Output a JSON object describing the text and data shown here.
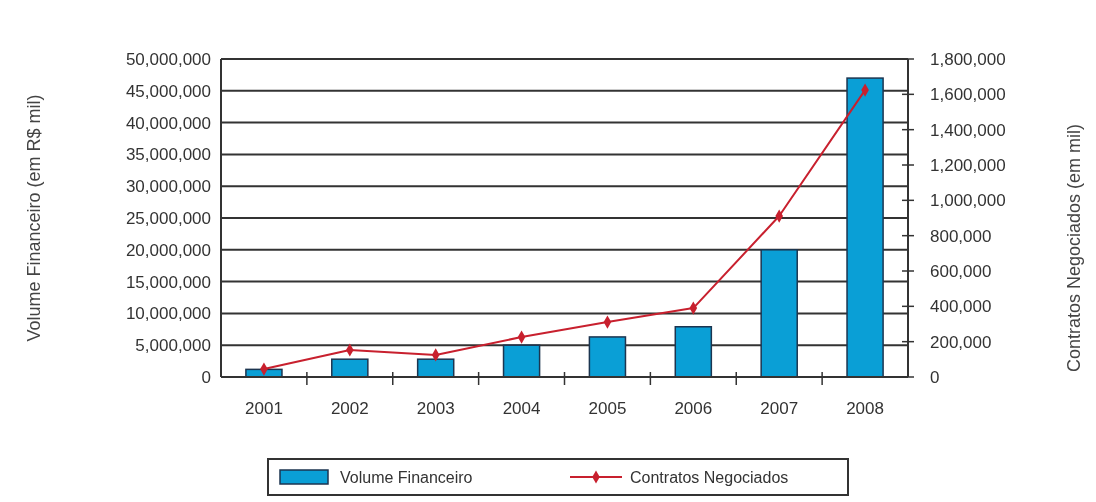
{
  "chart_data": {
    "type": "bar",
    "categories": [
      "2001",
      "2002",
      "2003",
      "2004",
      "2005",
      "2006",
      "2007",
      "2008"
    ],
    "ylabel": "Volume Financeiro (em R$ mil)",
    "y2label": "Contratos Negociados (em mil)",
    "series": [
      {
        "name": "Volume Financeiro",
        "color": "#0a9fd6",
        "values": [
          1200000,
          2800000,
          2800000,
          5000000,
          6300000,
          7900000,
          20000000,
          47000000
        ]
      },
      {
        "name": "Contratos Negociados",
        "type": "line",
        "axis": "y2",
        "color": "#c8202e",
        "marker": "diamond",
        "values": [
          45000,
          153000,
          125000,
          226000,
          311000,
          390000,
          911000,
          1624000
        ]
      }
    ],
    "ylim": [
      0,
      50000000
    ],
    "yticks": [
      {
        "value": 0,
        "label": "0"
      },
      {
        "value": 5000000,
        "label": "5,000,000"
      },
      {
        "value": 10000000,
        "label": "10,000,000"
      },
      {
        "value": 15000000,
        "label": "15,000,000"
      },
      {
        "value": 20000000,
        "label": "20,000,000"
      },
      {
        "value": 25000000,
        "label": "25,000,000"
      },
      {
        "value": 30000000,
        "label": "30,000,000"
      },
      {
        "value": 35000000,
        "label": "35,000,000"
      },
      {
        "value": 40000000,
        "label": "40,000,000"
      },
      {
        "value": 45000000,
        "label": "45,000,000"
      },
      {
        "value": 50000000,
        "label": "50,000,000"
      }
    ],
    "y2lim": [
      0,
      1800000
    ],
    "y2ticks": [
      {
        "value": 0,
        "label": "0"
      },
      {
        "value": 200000,
        "label": "200,000"
      },
      {
        "value": 400000,
        "label": "400,000"
      },
      {
        "value": 600000,
        "label": "600,000"
      },
      {
        "value": 800000,
        "label": "800,000"
      },
      {
        "value": 1000000,
        "label": "1,000,000"
      },
      {
        "value": 1200000,
        "label": "1,200,000"
      },
      {
        "value": 1400000,
        "label": "1,400,000"
      },
      {
        "value": 1600000,
        "label": "1,600,000"
      },
      {
        "value": 1800000,
        "label": "1,800,000"
      }
    ],
    "grid": "y",
    "legend": "bottom"
  }
}
